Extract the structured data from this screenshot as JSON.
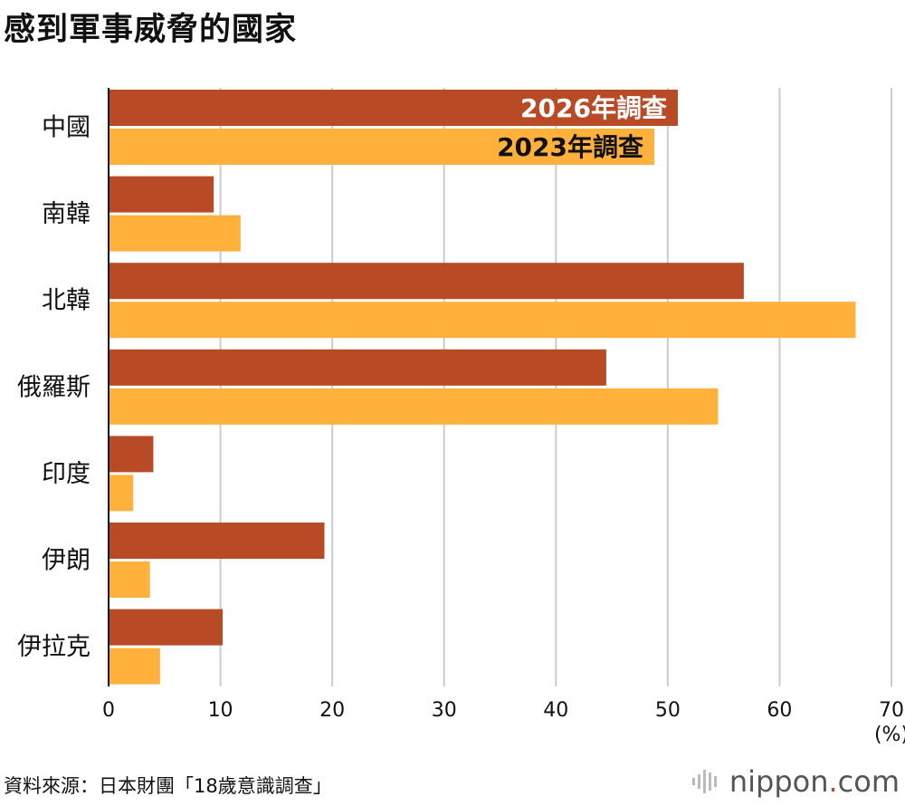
{
  "title": "感到軍事威脅的國家",
  "source": "資料來源：日本財團「18歲意識調查」",
  "brand": {
    "name": "nippon",
    "dot": ".",
    "suffix": "com"
  },
  "colors": {
    "series_2026": "#b84a26",
    "series_2023": "#ffb13c",
    "grid": "#cccccc",
    "axis": "#111111"
  },
  "chart_data": {
    "type": "bar",
    "orientation": "horizontal",
    "categories": [
      "中國",
      "南韓",
      "北韓",
      "俄羅斯",
      "印度",
      "伊朗",
      "伊拉克"
    ],
    "series": [
      {
        "name": "2026年調查",
        "values": [
          50.9,
          9.4,
          56.8,
          44.5,
          4.0,
          19.3,
          10.2
        ]
      },
      {
        "name": "2023年調查",
        "values": [
          48.8,
          11.8,
          66.8,
          54.5,
          2.2,
          3.7,
          4.6
        ]
      }
    ],
    "xlim": [
      0,
      70
    ],
    "xticks": [
      "0",
      "10",
      "20",
      "30",
      "40",
      "50",
      "60",
      "70"
    ],
    "xunit": "(%)",
    "grid": true,
    "legend": "inline-on-first-bars"
  }
}
